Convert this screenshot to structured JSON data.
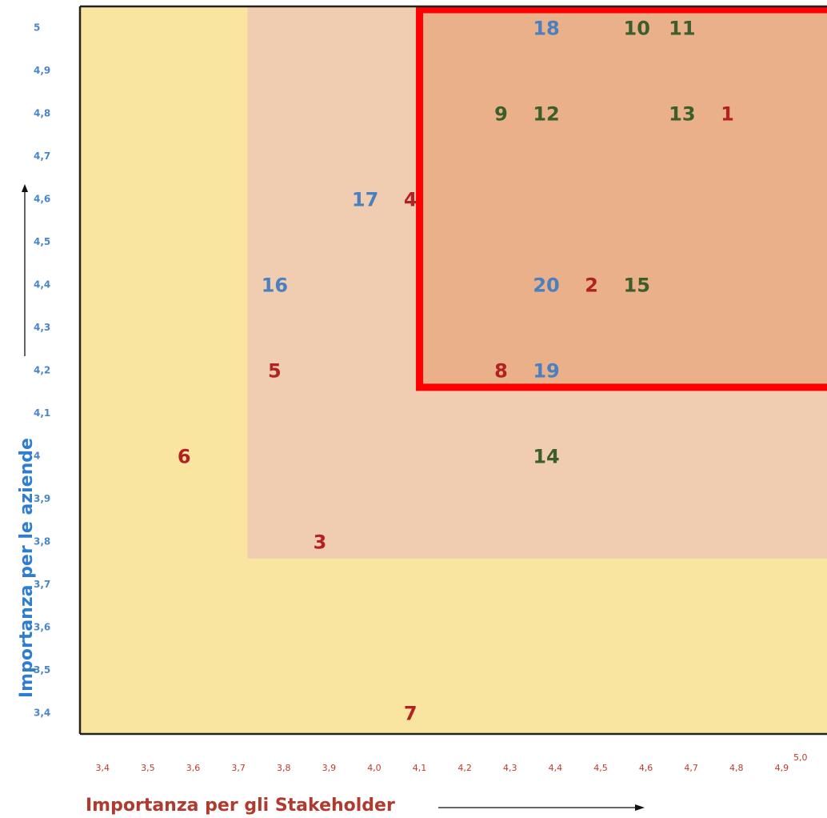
{
  "chart_data": {
    "type": "scatter",
    "title": "",
    "xlabel": "Importanza per gli Stakeholder",
    "ylabel": "Importanza per le aziende",
    "xlim": [
      3.35,
      5.0
    ],
    "ylim": [
      3.35,
      5.05
    ],
    "x_ticks": [
      "3,4",
      "3,5",
      "3,6",
      "3,7",
      "3,8",
      "3,9",
      "4,0",
      "4,1",
      "4,2",
      "4,3",
      "4,4",
      "4,5",
      "4,6",
      "4,7",
      "4,8",
      "4,9",
      "5,0"
    ],
    "y_ticks": [
      "5",
      "4,9",
      "4,8",
      "4,7",
      "4,6",
      "4,5",
      "4,4",
      "4,3",
      "4,2",
      "4,1",
      "4",
      "3,9",
      "3,8",
      "3,7",
      "3,6",
      "3,5",
      "3,4"
    ],
    "zones": [
      {
        "name": "low",
        "color": "#f9e4a0"
      },
      {
        "name": "medium",
        "x_from": 3.72,
        "y_from": 3.76,
        "color": "#f0cdb0"
      },
      {
        "name": "high",
        "x_from": 4.1,
        "y_from": 4.16,
        "color": "#eab08a",
        "border": "#ff0000"
      }
    ],
    "colors": {
      "red": "#b22222",
      "green": "#3b5e2a",
      "blue": "#4a7fc0"
    },
    "points": [
      {
        "label": "1",
        "x": 4.78,
        "y": 4.8,
        "group": "red"
      },
      {
        "label": "2",
        "x": 4.48,
        "y": 4.4,
        "group": "red"
      },
      {
        "label": "3",
        "x": 3.88,
        "y": 3.8,
        "group": "red"
      },
      {
        "label": "4",
        "x": 4.08,
        "y": 4.6,
        "group": "red"
      },
      {
        "label": "5",
        "x": 3.78,
        "y": 4.2,
        "group": "red"
      },
      {
        "label": "6",
        "x": 3.58,
        "y": 4.0,
        "group": "red"
      },
      {
        "label": "7",
        "x": 4.08,
        "y": 3.4,
        "group": "red"
      },
      {
        "label": "8",
        "x": 4.28,
        "y": 4.2,
        "group": "red"
      },
      {
        "label": "9",
        "x": 4.28,
        "y": 4.8,
        "group": "green"
      },
      {
        "label": "10",
        "x": 4.58,
        "y": 5.0,
        "group": "green"
      },
      {
        "label": "11",
        "x": 4.68,
        "y": 5.0,
        "group": "green"
      },
      {
        "label": "12",
        "x": 4.38,
        "y": 4.8,
        "group": "green"
      },
      {
        "label": "13",
        "x": 4.68,
        "y": 4.8,
        "group": "green"
      },
      {
        "label": "14",
        "x": 4.38,
        "y": 4.0,
        "group": "green"
      },
      {
        "label": "15",
        "x": 4.58,
        "y": 4.4,
        "group": "green"
      },
      {
        "label": "16",
        "x": 3.78,
        "y": 4.4,
        "group": "blue"
      },
      {
        "label": "17",
        "x": 3.98,
        "y": 4.6,
        "group": "blue"
      },
      {
        "label": "18",
        "x": 4.38,
        "y": 5.0,
        "group": "blue"
      },
      {
        "label": "19",
        "x": 4.38,
        "y": 4.2,
        "group": "blue"
      },
      {
        "label": "20",
        "x": 4.38,
        "y": 4.4,
        "group": "blue"
      }
    ]
  }
}
